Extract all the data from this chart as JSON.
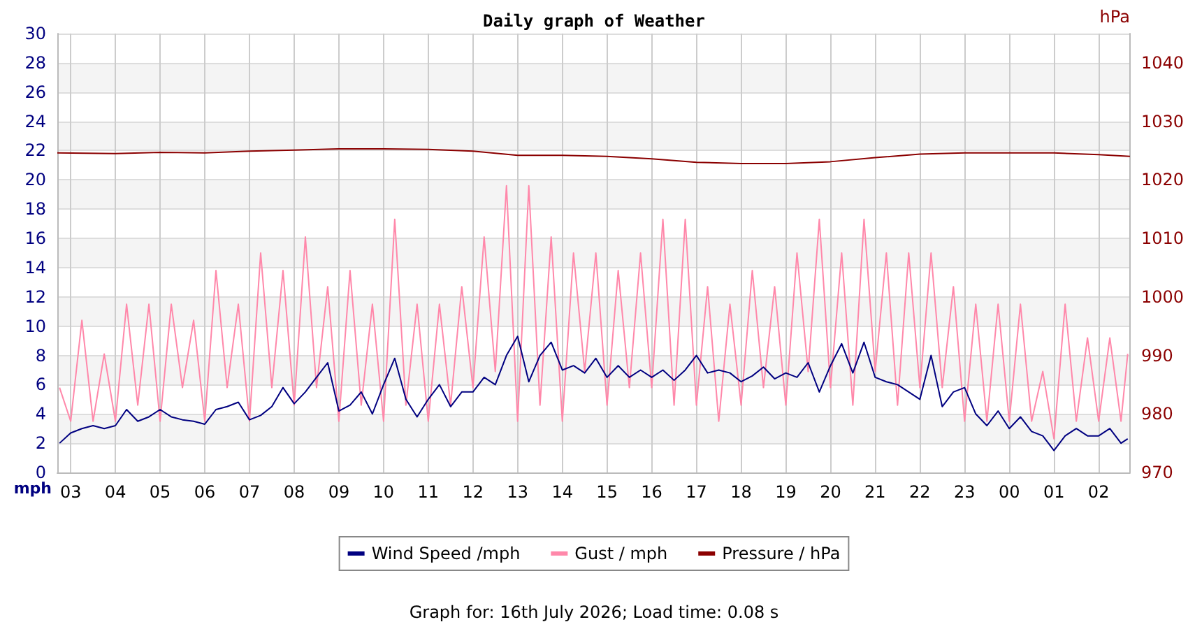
{
  "chart_data": {
    "type": "line",
    "title": "Daily graph of Weather",
    "ylabel": "mph",
    "y2label": "hPa",
    "annotations": [
      "Graph for: 16th July 2026; Load time: 0.08 s"
    ],
    "xlim": [
      "2026-07-15T02:42",
      "2026-07-16T02:42"
    ],
    "xticks": [
      {
        "value": "2026-07-15T03:00",
        "label": "03"
      },
      {
        "value": "2026-07-15T04:00",
        "label": "04"
      },
      {
        "value": "2026-07-15T05:00",
        "label": "05"
      },
      {
        "value": "2026-07-15T06:00",
        "label": "06"
      },
      {
        "value": "2026-07-15T07:00",
        "label": "07"
      },
      {
        "value": "2026-07-15T08:00",
        "label": "08"
      },
      {
        "value": "2026-07-15T09:00",
        "label": "09"
      },
      {
        "value": "2026-07-15T10:00",
        "label": "10"
      },
      {
        "value": "2026-07-15T11:00",
        "label": "11"
      },
      {
        "value": "2026-07-15T12:00",
        "label": "12"
      },
      {
        "value": "2026-07-15T13:00",
        "label": "13"
      },
      {
        "value": "2026-07-15T14:00",
        "label": "14"
      },
      {
        "value": "2026-07-15T15:00",
        "label": "15"
      },
      {
        "value": "2026-07-15T16:00",
        "label": "16"
      },
      {
        "value": "2026-07-15T17:00",
        "label": "17"
      },
      {
        "value": "2026-07-15T18:00",
        "label": "18"
      },
      {
        "value": "2026-07-15T19:00",
        "label": "19"
      },
      {
        "value": "2026-07-15T20:00",
        "label": "20"
      },
      {
        "value": "2026-07-15T21:00",
        "label": "21"
      },
      {
        "value": "2026-07-15T22:00",
        "label": "22"
      },
      {
        "value": "2026-07-15T23:00",
        "label": "23"
      },
      {
        "value": "2026-07-16T00:00",
        "label": "00"
      },
      {
        "value": "2026-07-16T01:00",
        "label": "01"
      },
      {
        "value": "2026-07-16T02:00",
        "label": "02"
      }
    ],
    "ylim": [
      0,
      30
    ],
    "yticks": [
      0,
      2,
      4,
      6,
      8,
      10,
      12,
      14,
      16,
      18,
      20,
      22,
      24,
      26,
      28,
      30
    ],
    "y2lim": [
      970,
      1045
    ],
    "y2ticks": [
      970,
      980,
      990,
      1000,
      1010,
      1020,
      1030,
      1040
    ],
    "grid": true,
    "legend": "bottom",
    "marker": "none",
    "line_style": "solid",
    "x": [
      "2026-07-15T02:45",
      "2026-07-15T03:00",
      "2026-07-15T03:15",
      "2026-07-15T03:30",
      "2026-07-15T03:45",
      "2026-07-15T04:00",
      "2026-07-15T04:15",
      "2026-07-15T04:30",
      "2026-07-15T04:45",
      "2026-07-15T05:00",
      "2026-07-15T05:15",
      "2026-07-15T05:30",
      "2026-07-15T05:45",
      "2026-07-15T06:00",
      "2026-07-15T06:15",
      "2026-07-15T06:30",
      "2026-07-15T06:45",
      "2026-07-15T07:00",
      "2026-07-15T07:15",
      "2026-07-15T07:30",
      "2026-07-15T07:45",
      "2026-07-15T08:00",
      "2026-07-15T08:15",
      "2026-07-15T08:30",
      "2026-07-15T08:45",
      "2026-07-15T09:00",
      "2026-07-15T09:15",
      "2026-07-15T09:30",
      "2026-07-15T09:45",
      "2026-07-15T10:00",
      "2026-07-15T10:15",
      "2026-07-15T10:30",
      "2026-07-15T10:45",
      "2026-07-15T11:00",
      "2026-07-15T11:15",
      "2026-07-15T11:30",
      "2026-07-15T11:45",
      "2026-07-15T12:00",
      "2026-07-15T12:15",
      "2026-07-15T12:30",
      "2026-07-15T12:45",
      "2026-07-15T13:00",
      "2026-07-15T13:15",
      "2026-07-15T13:30",
      "2026-07-15T13:45",
      "2026-07-15T14:00",
      "2026-07-15T14:15",
      "2026-07-15T14:30",
      "2026-07-15T14:45",
      "2026-07-15T15:00",
      "2026-07-15T15:15",
      "2026-07-15T15:30",
      "2026-07-15T15:45",
      "2026-07-15T16:00",
      "2026-07-15T16:15",
      "2026-07-15T16:30",
      "2026-07-15T16:45",
      "2026-07-15T17:00",
      "2026-07-15T17:15",
      "2026-07-15T17:30",
      "2026-07-15T17:45",
      "2026-07-15T18:00",
      "2026-07-15T18:15",
      "2026-07-15T18:30",
      "2026-07-15T18:45",
      "2026-07-15T19:00",
      "2026-07-15T19:15",
      "2026-07-15T19:30",
      "2026-07-15T19:45",
      "2026-07-15T20:00",
      "2026-07-15T20:15",
      "2026-07-15T20:30",
      "2026-07-15T20:45",
      "2026-07-15T21:00",
      "2026-07-15T21:15",
      "2026-07-15T21:30",
      "2026-07-15T21:45",
      "2026-07-15T22:00",
      "2026-07-15T22:15",
      "2026-07-15T22:30",
      "2026-07-15T22:45",
      "2026-07-15T23:00",
      "2026-07-15T23:15",
      "2026-07-15T23:30",
      "2026-07-15T23:45",
      "2026-07-16T00:00",
      "2026-07-16T00:15",
      "2026-07-16T00:30",
      "2026-07-16T00:45",
      "2026-07-16T01:00",
      "2026-07-16T01:15",
      "2026-07-16T01:30",
      "2026-07-16T01:45",
      "2026-07-16T02:00",
      "2026-07-16T02:15",
      "2026-07-16T02:30",
      "2026-07-16T02:39"
    ],
    "series": [
      {
        "name": "Wind Speed /mph",
        "color": "#000080",
        "values": [
          2.0,
          2.7,
          3.0,
          3.2,
          3.0,
          3.2,
          4.3,
          3.5,
          3.8,
          4.3,
          3.8,
          3.6,
          3.5,
          3.3,
          4.3,
          4.5,
          4.8,
          3.6,
          3.9,
          4.5,
          5.8,
          4.7,
          5.5,
          6.5,
          7.5,
          4.2,
          4.6,
          5.5,
          4.0,
          6.0,
          7.8,
          5.0,
          3.8,
          5.0,
          6.0,
          4.5,
          5.5,
          5.5,
          6.5,
          6.0,
          8.0,
          9.3,
          6.2,
          8.0,
          8.9,
          7.0,
          7.3,
          6.8,
          7.8,
          6.5,
          7.3,
          6.5,
          7.0,
          6.5,
          7.0,
          6.3,
          7.0,
          8.0,
          6.8,
          7.0,
          6.8,
          6.2,
          6.6,
          7.2,
          6.4,
          6.8,
          6.5,
          7.5,
          5.5,
          7.3,
          8.8,
          6.8,
          8.9,
          6.5,
          6.2,
          6.0,
          5.5,
          5.0,
          8.0,
          4.5,
          5.5,
          5.8,
          4.0,
          3.2,
          4.2,
          3.0,
          3.8,
          2.8,
          2.5,
          1.5,
          2.5,
          3.0,
          2.5,
          2.5,
          3.0,
          2.0,
          2.3
        ]
      },
      {
        "name": "Gust / mph",
        "color": "#ff88aa",
        "values": [
          5.8,
          3.5,
          10.4,
          3.5,
          8.1,
          3.5,
          11.5,
          4.6,
          11.5,
          3.5,
          11.5,
          5.8,
          10.4,
          3.5,
          13.8,
          5.8,
          11.5,
          3.5,
          15.0,
          5.8,
          13.8,
          4.6,
          16.1,
          5.8,
          12.7,
          3.5,
          13.8,
          4.6,
          11.5,
          3.5,
          17.3,
          4.6,
          11.5,
          3.5,
          11.5,
          4.6,
          12.7,
          5.8,
          16.1,
          6.9,
          19.6,
          3.5,
          19.6,
          4.6,
          16.1,
          3.5,
          15.0,
          6.9,
          15.0,
          4.6,
          13.8,
          5.8,
          15.0,
          5.8,
          17.3,
          4.6,
          17.3,
          4.6,
          12.7,
          3.5,
          11.5,
          4.6,
          13.8,
          5.8,
          12.7,
          4.6,
          15.0,
          6.9,
          17.3,
          5.8,
          15.0,
          4.6,
          17.3,
          6.9,
          15.0,
          4.6,
          15.0,
          5.8,
          15.0,
          5.8,
          12.7,
          3.5,
          11.5,
          3.5,
          11.5,
          3.5,
          11.5,
          3.5,
          6.9,
          2.3,
          11.5,
          3.5,
          9.2,
          3.5,
          9.2,
          3.5,
          8.1
        ]
      },
      {
        "name": "Pressure / hPa",
        "color": "#8b0000",
        "axis": "y2",
        "x": [
          "2026-07-15T02:42",
          "2026-07-15T04:00",
          "2026-07-15T05:00",
          "2026-07-15T06:00",
          "2026-07-15T07:00",
          "2026-07-15T08:00",
          "2026-07-15T09:00",
          "2026-07-15T10:00",
          "2026-07-15T11:00",
          "2026-07-15T12:00",
          "2026-07-15T13:00",
          "2026-07-15T14:00",
          "2026-07-15T15:00",
          "2026-07-15T16:00",
          "2026-07-15T17:00",
          "2026-07-15T18:00",
          "2026-07-15T19:00",
          "2026-07-15T20:00",
          "2026-07-15T21:00",
          "2026-07-15T22:00",
          "2026-07-15T23:00",
          "2026-07-16T00:00",
          "2026-07-16T01:00",
          "2026-07-16T02:00",
          "2026-07-16T02:42"
        ],
        "values": [
          1024.6,
          1024.5,
          1024.7,
          1024.6,
          1024.9,
          1025.1,
          1025.3,
          1025.3,
          1025.2,
          1024.9,
          1024.2,
          1024.2,
          1024.0,
          1023.6,
          1023.0,
          1022.8,
          1022.8,
          1023.1,
          1023.8,
          1024.4,
          1024.6,
          1024.6,
          1024.6,
          1024.3,
          1024.0
        ]
      }
    ]
  }
}
